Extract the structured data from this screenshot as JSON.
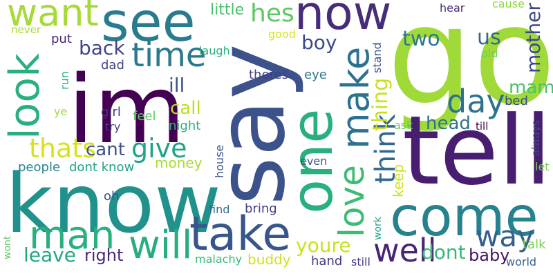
{
  "palette": {
    "dark_purple": "#440154",
    "indigo": "#3b528b",
    "teal": "#21918c",
    "green": "#5ec962",
    "lime": "#b5de2b",
    "yellow": "#d8e219"
  },
  "words": [
    {
      "text": "go",
      "color": "#a0da39"
    },
    {
      "text": "say",
      "color": "#3b528b"
    },
    {
      "text": "tell",
      "color": "#481f70"
    },
    {
      "text": "know",
      "color": "#21918c"
    },
    {
      "text": "im",
      "color": "#440154"
    },
    {
      "text": "one",
      "color": "#2ab07f"
    },
    {
      "text": "come",
      "color": "#26828e"
    },
    {
      "text": "see",
      "color": "#287c8e"
    },
    {
      "text": "now",
      "color": "#472c7a"
    },
    {
      "text": "make",
      "color": "#2c728e"
    },
    {
      "text": "take",
      "color": "#39568c"
    },
    {
      "text": "love",
      "color": "#3dbc74"
    },
    {
      "text": "look",
      "color": "#2ab07f"
    },
    {
      "text": "want",
      "color": "#a5db36"
    },
    {
      "text": "man",
      "color": "#2ab07f"
    },
    {
      "text": "will",
      "color": "#27ad81"
    },
    {
      "text": "time",
      "color": "#2a788e"
    },
    {
      "text": "think",
      "color": "#31688e"
    },
    {
      "text": "well",
      "color": "#482475"
    },
    {
      "text": "way",
      "color": "#355f8d"
    },
    {
      "text": "day",
      "color": "#2c728e"
    },
    {
      "text": "thats",
      "color": "#d8e219"
    },
    {
      "text": "give",
      "color": "#20a386"
    },
    {
      "text": "thing",
      "color": "#c8e020"
    },
    {
      "text": "mother",
      "color": "#3e4989"
    },
    {
      "text": "youre",
      "color": "#cae11f"
    },
    {
      "text": "hes",
      "color": "#5ec962"
    },
    {
      "text": "dont",
      "color": "#35b779"
    },
    {
      "text": "back",
      "color": "#414487"
    },
    {
      "text": "boy",
      "color": "#3e4989"
    },
    {
      "text": "two",
      "color": "#2a788e"
    },
    {
      "text": "us",
      "color": "#31688e"
    },
    {
      "text": "head",
      "color": "#2c728e"
    },
    {
      "text": "cant",
      "color": "#3b528b"
    },
    {
      "text": "call",
      "color": "#b8de29"
    },
    {
      "text": "mam",
      "color": "#4ac16d"
    },
    {
      "text": "leave",
      "color": "#22a884"
    },
    {
      "text": "right",
      "color": "#482878"
    },
    {
      "text": "baby",
      "color": "#471365"
    },
    {
      "text": "ill",
      "color": "#3b528b"
    },
    {
      "text": "little",
      "color": "#4ac16d"
    },
    {
      "text": "people",
      "color": "#26828e"
    },
    {
      "text": "dont know",
      "color": "#20a386"
    },
    {
      "text": "money",
      "color": "#a8db34"
    },
    {
      "text": "keep",
      "color": "#d0e11c"
    },
    {
      "text": "buddy",
      "color": "#d0e11c"
    },
    {
      "text": "hand",
      "color": "#443a83"
    },
    {
      "text": "talk",
      "color": "#7ad151"
    },
    {
      "text": "dad",
      "color": "#414487"
    },
    {
      "text": "theres",
      "color": "#433e85"
    },
    {
      "text": "eye",
      "color": "#2a788e"
    },
    {
      "text": "night",
      "color": "#2ab07f"
    },
    {
      "text": "feel",
      "color": "#5ec962"
    },
    {
      "text": "girl",
      "color": "#46337e"
    },
    {
      "text": "try",
      "color": "#433e85"
    },
    {
      "text": "bed",
      "color": "#3e4989"
    },
    {
      "text": "put",
      "color": "#482878"
    },
    {
      "text": "laugh",
      "color": "#2ab07f"
    },
    {
      "text": "good",
      "color": "#d8e219"
    },
    {
      "text": "hear",
      "color": "#472c7a"
    },
    {
      "text": "cause",
      "color": "#93d741"
    },
    {
      "text": "old",
      "color": "#6ece58"
    },
    {
      "text": "never",
      "color": "#a5db36"
    },
    {
      "text": "run",
      "color": "#2ab07f"
    },
    {
      "text": "ye",
      "color": "#9fda3a"
    },
    {
      "text": "oh",
      "color": "#3b528b"
    },
    {
      "text": "ask",
      "color": "#5ec962"
    },
    {
      "text": "till",
      "color": "#440154"
    },
    {
      "text": "stand",
      "color": "#3b528b"
    },
    {
      "text": "even",
      "color": "#3b528b"
    },
    {
      "text": "find",
      "color": "#2c728e"
    },
    {
      "text": "bring",
      "color": "#433e85"
    },
    {
      "text": "house",
      "color": "#3b528b"
    },
    {
      "text": "work",
      "color": "#20a386"
    },
    {
      "text": "malachy",
      "color": "#35b779"
    },
    {
      "text": "still",
      "color": "#443a83"
    },
    {
      "text": "world",
      "color": "#355f8d"
    },
    {
      "text": "always",
      "color": "#3e4989"
    },
    {
      "text": "let",
      "color": "#7ad151"
    },
    {
      "text": "wont",
      "color": "#5ec962"
    }
  ]
}
